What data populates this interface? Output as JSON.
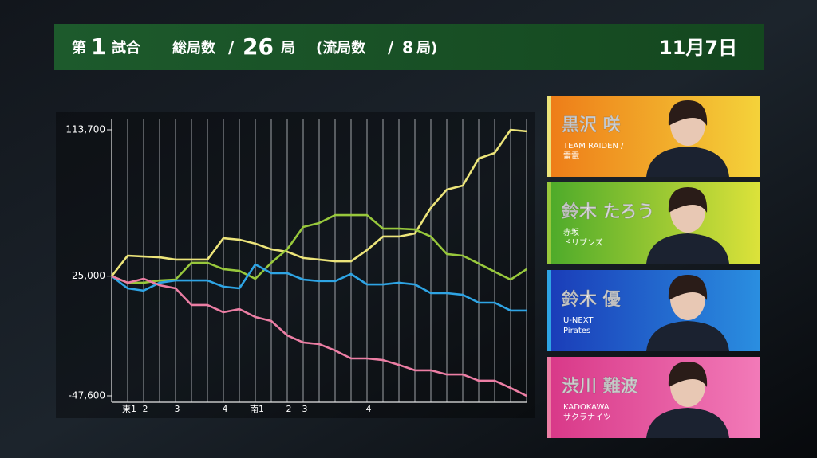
{
  "header": {
    "match_prefix": "第",
    "match_no": 1,
    "match_suffix": "試合",
    "total_label": "総局数",
    "total_slash": "/",
    "total": 26,
    "total_unit": "局",
    "draw_open": "(流局数",
    "draw_slash": "/",
    "draws": 8,
    "draw_close": "局)",
    "date": "11月7日"
  },
  "chart_data": {
    "type": "line",
    "categories": [
      null,
      "東1",
      "2",
      null,
      "3",
      null,
      null,
      "4",
      null,
      "南1",
      null,
      "2",
      "3",
      null,
      null,
      null,
      "4",
      null,
      null,
      null,
      null,
      null,
      null,
      null,
      null,
      null,
      null
    ],
    "ylim": [
      -47600,
      113700
    ],
    "yticks": [
      {
        "value": 113700,
        "label": "113,700"
      },
      {
        "value": 25000,
        "label": "25,000"
      },
      {
        "value": -47600,
        "label": "-47,600"
      }
    ],
    "series": [
      {
        "name": "黒沢 咲",
        "team": [
          "TEAM RAIDEN /",
          "雷電"
        ],
        "color": "#ece47a",
        "values": [
          25000,
          37400,
          36900,
          36400,
          35000,
          35000,
          35000,
          48000,
          47100,
          44700,
          41300,
          39800,
          36000,
          35000,
          34000,
          34000,
          40800,
          49000,
          49000,
          50900,
          66400,
          77500,
          79900,
          96300,
          99700,
          113700,
          112800
        ]
      },
      {
        "name": "鈴木 たろう",
        "team": [
          "赤坂",
          "ドリブンズ"
        ],
        "color": "#98c83c",
        "values": [
          25000,
          21000,
          21000,
          22400,
          22900,
          33100,
          33100,
          29200,
          28200,
          23400,
          33100,
          41300,
          54800,
          57200,
          62000,
          62000,
          62000,
          53800,
          53800,
          53300,
          49000,
          38400,
          37400,
          32600,
          27700,
          22900,
          29200
        ]
      },
      {
        "name": "鈴木 優",
        "team": [
          "U-NEXT",
          "Pirates"
        ],
        "color": "#2ea4e4",
        "values": [
          25000,
          17600,
          16200,
          21000,
          22400,
          22400,
          22400,
          18600,
          17600,
          32100,
          26800,
          26800,
          22900,
          22000,
          22000,
          26300,
          20000,
          20000,
          21000,
          20000,
          14700,
          14700,
          13700,
          8900,
          8900,
          4100,
          4100
        ]
      },
      {
        "name": "渋川 難波",
        "team": [
          "KADOKAWA",
          "サクラナイツ"
        ],
        "color": "#ec7ea4",
        "values": [
          25000,
          21000,
          23400,
          19500,
          17600,
          7500,
          7500,
          3100,
          5000,
          200,
          -2200,
          -10900,
          -15200,
          -16200,
          -20100,
          -24900,
          -24900,
          -25900,
          -28800,
          -32100,
          -32100,
          -34600,
          -34600,
          -38400,
          -38400,
          -42800,
          -47600
        ]
      }
    ]
  }
}
